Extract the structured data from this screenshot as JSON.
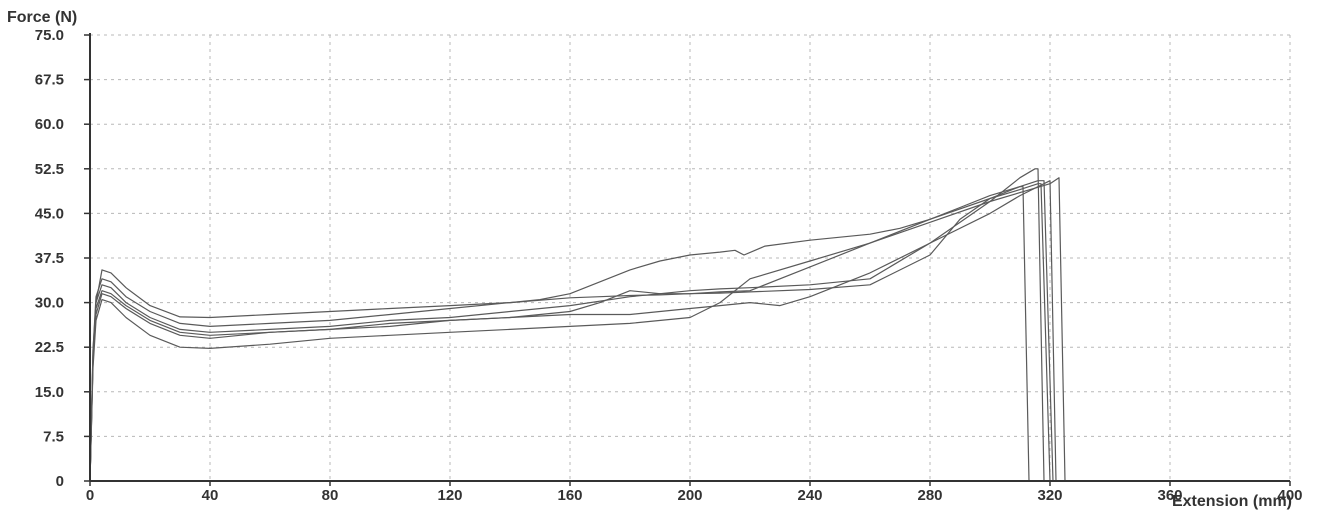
{
  "chart_data": {
    "type": "line",
    "title": "",
    "ylabel": "Force (N)",
    "xlabel": "Extension (mm)",
    "xlim": [
      0,
      400
    ],
    "ylim": [
      0,
      75
    ],
    "x_ticks": [
      0,
      40,
      80,
      120,
      160,
      200,
      240,
      280,
      320,
      360,
      400
    ],
    "y_ticks": [
      0,
      7.5,
      15.0,
      22.5,
      30.0,
      37.5,
      45.0,
      52.5,
      60.0,
      67.5,
      75.0
    ],
    "y_tick_labels": [
      "0",
      "7.5",
      "15.0",
      "22.5",
      "30.0",
      "37.5",
      "45.0",
      "52.5",
      "60.0",
      "67.5",
      "75.0"
    ],
    "grid": true,
    "legend": "none",
    "colors": {
      "axis": "#333333",
      "grid": "#b8b8b8",
      "line": "#5a5a5a"
    },
    "series": [
      {
        "x": [
          0,
          1,
          2,
          4,
          7,
          12,
          20,
          30,
          40,
          60,
          80,
          100,
          120,
          140,
          150,
          160,
          170,
          180,
          190,
          200,
          210,
          215,
          218,
          225,
          240,
          260,
          270,
          280,
          290,
          300,
          310,
          311,
          313
        ],
        "y": [
          0,
          20,
          30,
          35.5,
          35.0,
          32.5,
          29.5,
          27.6,
          27.5,
          28.0,
          28.5,
          29.0,
          29.5,
          30.0,
          30.5,
          31.5,
          33.5,
          35.5,
          37.0,
          38.0,
          38.5,
          38.8,
          38.0,
          39.5,
          40.5,
          41.5,
          42.5,
          44.0,
          46.0,
          48.0,
          49.5,
          49.5,
          0
        ]
      },
      {
        "x": [
          0,
          1,
          2,
          4,
          7,
          12,
          20,
          30,
          40,
          60,
          80,
          100,
          120,
          140,
          160,
          180,
          190,
          200,
          210,
          220,
          240,
          260,
          280,
          300,
          310,
          315,
          316,
          318
        ],
        "y": [
          0,
          22,
          30,
          33.0,
          32.5,
          30.0,
          27.5,
          25.5,
          25.0,
          25.5,
          26.0,
          27.0,
          27.5,
          28.5,
          29.5,
          31.0,
          31.5,
          32.0,
          32.3,
          32.5,
          33.0,
          34.0,
          40.0,
          47.0,
          51.0,
          52.5,
          52.5,
          0
        ]
      },
      {
        "x": [
          0,
          1,
          2,
          4,
          7,
          12,
          20,
          30,
          40,
          60,
          80,
          100,
          120,
          140,
          160,
          170,
          180,
          190,
          200,
          210,
          220,
          240,
          260,
          280,
          300,
          310,
          316,
          317,
          320
        ],
        "y": [
          0,
          21,
          29,
          32.0,
          31.5,
          29.5,
          27.0,
          25.0,
          24.5,
          25.0,
          25.5,
          26.0,
          27.0,
          27.5,
          28.5,
          30.0,
          32.0,
          31.5,
          31.5,
          31.8,
          32.0,
          36.0,
          40.0,
          44.0,
          47.5,
          49.0,
          50.0,
          50.0,
          0
        ]
      },
      {
        "x": [
          0,
          1,
          2,
          4,
          7,
          12,
          20,
          30,
          40,
          60,
          80,
          100,
          120,
          140,
          160,
          180,
          200,
          210,
          220,
          230,
          240,
          260,
          280,
          300,
          310,
          320,
          322
        ],
        "y": [
          0,
          20,
          28,
          31.5,
          31.0,
          29.0,
          26.5,
          24.5,
          24.0,
          25.0,
          25.5,
          26.5,
          27.0,
          27.5,
          28.0,
          28.0,
          29.0,
          29.5,
          30.0,
          29.5,
          31.0,
          35.0,
          40.0,
          45.0,
          48.0,
          50.5,
          0
        ]
      },
      {
        "x": [
          0,
          1,
          2,
          4,
          7,
          12,
          20,
          30,
          40,
          60,
          80,
          100,
          120,
          140,
          160,
          180,
          200,
          210,
          220,
          240,
          260,
          280,
          300,
          320,
          323,
          325
        ],
        "y": [
          0,
          19,
          27,
          30.5,
          30.0,
          27.5,
          24.5,
          22.5,
          22.3,
          23.0,
          24.0,
          24.5,
          25.0,
          25.5,
          26.0,
          26.5,
          27.5,
          30.0,
          34.0,
          37.0,
          40.0,
          43.5,
          47.0,
          50.0,
          51.0,
          0
        ]
      },
      {
        "x": [
          0,
          1,
          2,
          4,
          7,
          12,
          20,
          30,
          40,
          60,
          80,
          100,
          120,
          140,
          160,
          170,
          180,
          190,
          200,
          210,
          220,
          240,
          260,
          280,
          290,
          300,
          310,
          316,
          318,
          321
        ],
        "y": [
          0,
          22,
          31,
          34.0,
          33.5,
          31.0,
          28.5,
          26.5,
          26.0,
          26.5,
          27.0,
          28.0,
          29.0,
          30.0,
          30.8,
          31.0,
          31.2,
          31.3,
          31.5,
          31.6,
          31.8,
          32.2,
          33.0,
          38.0,
          44.0,
          47.5,
          49.5,
          50.5,
          50.5,
          0
        ]
      }
    ]
  }
}
